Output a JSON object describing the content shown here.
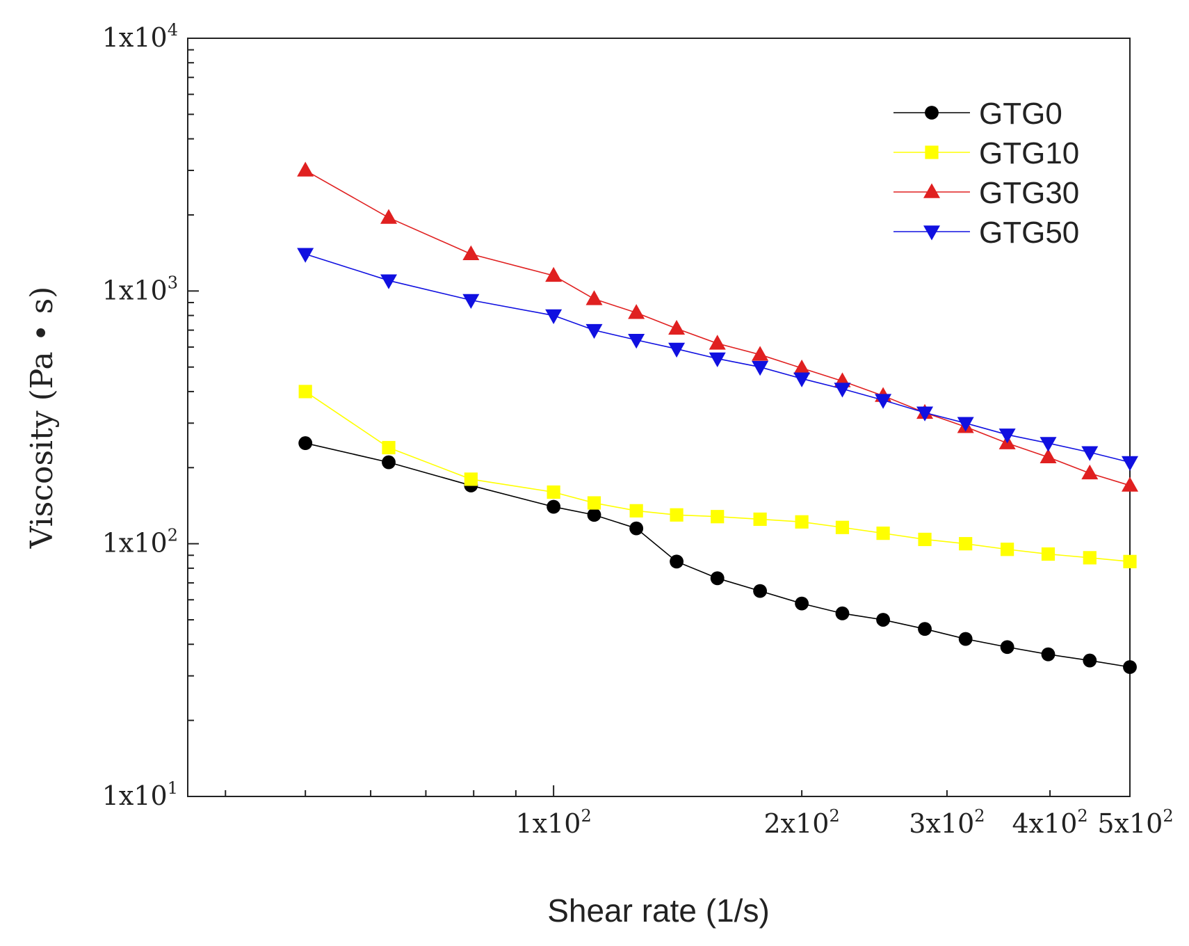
{
  "chart_data": {
    "type": "line",
    "title": "",
    "xlabel": "Shear rate (1/s)",
    "ylabel": "Viscosity (Pa • s)",
    "xscale": "log",
    "yscale": "log",
    "xlim": [
      36,
      500
    ],
    "ylim": [
      10,
      10000
    ],
    "legend_position": "top-right",
    "x_ticks": [
      {
        "value": 100,
        "base": "1x10",
        "exp": "2"
      },
      {
        "value": 200,
        "base": "2x10",
        "exp": "2"
      },
      {
        "value": 300,
        "base": "3x10",
        "exp": "2"
      },
      {
        "value": 400,
        "base": "4x10",
        "exp": "2"
      },
      {
        "value": 500,
        "base": "5x10",
        "exp": "2"
      }
    ],
    "y_ticks": [
      {
        "value": 10,
        "base": "1x10",
        "exp": "1"
      },
      {
        "value": 100,
        "base": "1x10",
        "exp": "2"
      },
      {
        "value": 1000,
        "base": "1x10",
        "exp": "3"
      },
      {
        "value": 10000,
        "base": "1x10",
        "exp": "4"
      }
    ],
    "x": [
      50,
      63.1,
      79.4,
      100,
      112,
      126,
      141,
      158,
      178,
      200,
      224,
      251,
      282,
      316,
      355,
      398,
      447,
      500
    ],
    "series": [
      {
        "name": "GTG0",
        "color": "#000000",
        "marker": "circle",
        "values": [
          250,
          210,
          170,
          140,
          130,
          115,
          85,
          73,
          65,
          58,
          53,
          50,
          46,
          42,
          39,
          36.5,
          34.5,
          32.5
        ]
      },
      {
        "name": "GTG10",
        "color": "#ffff00",
        "marker": "square",
        "values": [
          400,
          240,
          180,
          160,
          145,
          135,
          130,
          128,
          125,
          122,
          116,
          110,
          104,
          100,
          95,
          91,
          88,
          85
        ]
      },
      {
        "name": "GTG30",
        "color": "#e02020",
        "marker": "triangle-up",
        "values": [
          3000,
          1950,
          1400,
          1150,
          930,
          820,
          710,
          620,
          560,
          495,
          440,
          385,
          330,
          290,
          250,
          220,
          190,
          170
        ]
      },
      {
        "name": "GTG50",
        "color": "#1010e0",
        "marker": "triangle-down",
        "values": [
          1400,
          1100,
          920,
          800,
          700,
          640,
          590,
          540,
          500,
          450,
          410,
          370,
          330,
          300,
          270,
          250,
          230,
          210
        ]
      }
    ]
  }
}
